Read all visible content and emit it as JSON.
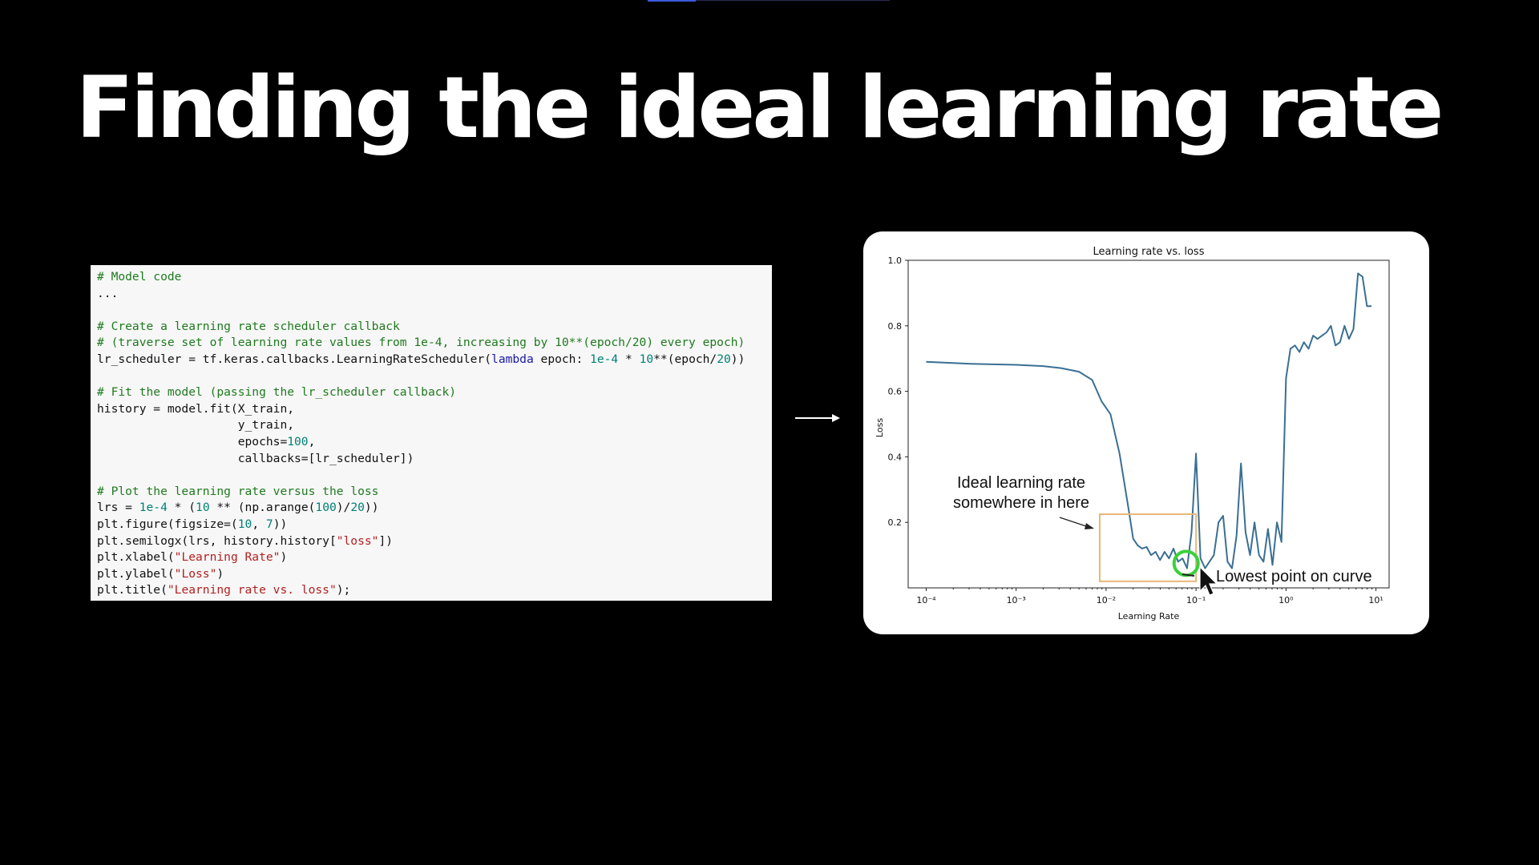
{
  "slide": {
    "title": "Finding the ideal learning rate"
  },
  "code": {
    "lines": [
      [
        [
          "# Model code",
          "comment"
        ]
      ],
      [
        [
          "...",
          "plain"
        ]
      ],
      [],
      [
        [
          "# Create a learning rate scheduler callback",
          "comment"
        ]
      ],
      [
        [
          "# (traverse set of learning rate values from 1e-4, increasing by 10**(epoch/20) every epoch)",
          "comment"
        ]
      ],
      [
        [
          "lr_scheduler = tf.keras.callbacks.LearningRateScheduler(",
          "plain"
        ],
        [
          "lambda",
          "keyword"
        ],
        [
          " epoch: ",
          "plain"
        ],
        [
          "1e-4",
          "number"
        ],
        [
          " * ",
          "plain"
        ],
        [
          "10",
          "number"
        ],
        [
          "**(epoch/",
          "plain"
        ],
        [
          "20",
          "number"
        ],
        [
          "))",
          "plain"
        ]
      ],
      [],
      [
        [
          "# Fit the model (passing the lr_scheduler callback)",
          "comment"
        ]
      ],
      [
        [
          "history = model.fit(X_train,",
          "plain"
        ]
      ],
      [
        [
          "                    y_train,",
          "plain"
        ]
      ],
      [
        [
          "                    epochs=",
          "plain"
        ],
        [
          "100",
          "number"
        ],
        [
          ",",
          "plain"
        ]
      ],
      [
        [
          "                    callbacks=[lr_scheduler])",
          "plain"
        ]
      ],
      [],
      [
        [
          "# Plot the learning rate versus the loss",
          "comment"
        ]
      ],
      [
        [
          "lrs = ",
          "plain"
        ],
        [
          "1e-4",
          "number"
        ],
        [
          " * (",
          "plain"
        ],
        [
          "10",
          "number"
        ],
        [
          " ** (np.arange(",
          "plain"
        ],
        [
          "100",
          "number"
        ],
        [
          ")/",
          "plain"
        ],
        [
          "20",
          "number"
        ],
        [
          "))",
          "plain"
        ]
      ],
      [
        [
          "plt.figure(figsize=(",
          "plain"
        ],
        [
          "10",
          "number"
        ],
        [
          ", ",
          "plain"
        ],
        [
          "7",
          "number"
        ],
        [
          "))",
          "plain"
        ]
      ],
      [
        [
          "plt.semilogx(lrs, history.history[",
          "plain"
        ],
        [
          "\"loss\"",
          "string"
        ],
        [
          "])",
          "plain"
        ]
      ],
      [
        [
          "plt.xlabel(",
          "plain"
        ],
        [
          "\"Learning Rate\"",
          "string"
        ],
        [
          ")",
          "plain"
        ]
      ],
      [
        [
          "plt.ylabel(",
          "plain"
        ],
        [
          "\"Loss\"",
          "string"
        ],
        [
          ")",
          "plain"
        ]
      ],
      [
        [
          "plt.title(",
          "plain"
        ],
        [
          "\"Learning rate vs. loss\"",
          "string"
        ],
        [
          ");",
          "plain"
        ]
      ]
    ]
  },
  "arrow_icon": "right-arrow-icon",
  "chart_data": {
    "type": "line",
    "title": "Learning rate vs. loss",
    "xlabel": "Learning Rate",
    "ylabel": "Loss",
    "xscale": "log",
    "xlim": [
      6.31e-05,
      14
    ],
    "ylim": [
      0.0,
      1.0
    ],
    "xticks": [
      0.0001,
      0.001,
      0.01,
      0.1,
      1,
      10
    ],
    "xtick_labels": [
      "10⁻⁴",
      "10⁻³",
      "10⁻²",
      "10⁻¹",
      "10⁰",
      "10¹"
    ],
    "yticks": [
      0.2,
      0.4,
      0.6,
      0.8,
      1.0
    ],
    "ytick_labels": [
      "0.2",
      "0.4",
      "0.6",
      "0.8",
      "1.0"
    ],
    "grid": false,
    "series": [
      {
        "color": "#3a6f93",
        "x": [
          0.0001,
          0.000316,
          0.001,
          0.002,
          0.00316,
          0.005,
          0.007,
          0.0089,
          0.0112,
          0.0141,
          0.0178,
          0.02,
          0.0224,
          0.0251,
          0.0282,
          0.0316,
          0.0355,
          0.0398,
          0.0447,
          0.0501,
          0.0562,
          0.0631,
          0.0708,
          0.0794,
          0.0891,
          0.1,
          0.112,
          0.126,
          0.141,
          0.158,
          0.178,
          0.2,
          0.224,
          0.251,
          0.282,
          0.316,
          0.355,
          0.398,
          0.447,
          0.501,
          0.562,
          0.631,
          0.708,
          0.794,
          0.891,
          1.0,
          1.12,
          1.26,
          1.41,
          1.58,
          1.78,
          2.0,
          2.24,
          2.51,
          2.82,
          3.16,
          3.55,
          3.98,
          4.47,
          5.01,
          5.62,
          6.31,
          7.08,
          7.94,
          8.91
        ],
        "y": [
          0.69,
          0.684,
          0.681,
          0.677,
          0.671,
          0.66,
          0.635,
          0.57,
          0.53,
          0.41,
          0.24,
          0.15,
          0.13,
          0.12,
          0.125,
          0.1,
          0.11,
          0.085,
          0.11,
          0.09,
          0.12,
          0.08,
          0.09,
          0.06,
          0.17,
          0.41,
          0.09,
          0.06,
          0.08,
          0.1,
          0.2,
          0.22,
          0.08,
          0.06,
          0.16,
          0.38,
          0.17,
          0.1,
          0.2,
          0.1,
          0.08,
          0.18,
          0.07,
          0.2,
          0.14,
          0.64,
          0.73,
          0.74,
          0.72,
          0.75,
          0.73,
          0.77,
          0.76,
          0.77,
          0.78,
          0.8,
          0.74,
          0.75,
          0.8,
          0.76,
          0.79,
          0.96,
          0.95,
          0.86,
          0.86
        ]
      }
    ],
    "annotations": {
      "box_label": [
        "Ideal learning rate",
        "somewhere in here"
      ],
      "box_x_range": [
        0.0085,
        0.1
      ],
      "box_y_range": [
        0.02,
        0.225
      ],
      "box_color": "#e8b777",
      "min_point_label": "Lowest point on curve",
      "min_point_x": 0.0775,
      "min_point_y": 0.075,
      "min_point_color": "#39d13a",
      "cursor_icon": "mouse-pointer-icon"
    }
  }
}
